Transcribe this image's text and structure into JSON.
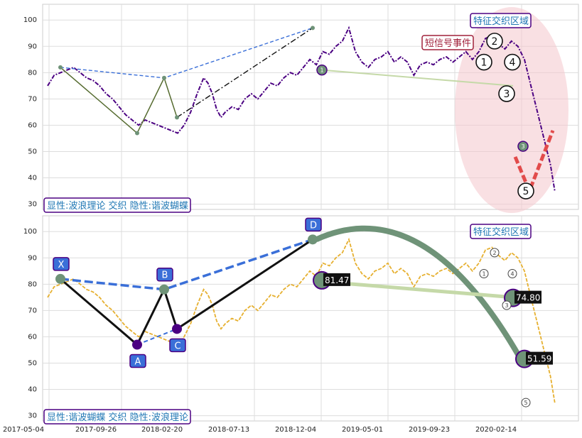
{
  "chart_data": [
    {
      "type": "line",
      "panel": "top",
      "ylim": [
        28,
        106
      ],
      "yticks": [
        30,
        40,
        50,
        60,
        70,
        80,
        90,
        100
      ],
      "grid": true,
      "series": [
        {
          "points": [
            [
              0,
              75
            ],
            [
              3,
              79
            ],
            [
              6,
              80
            ],
            [
              9,
              81
            ],
            [
              12,
              82
            ],
            [
              15,
              80
            ],
            [
              18,
              78
            ],
            [
              21,
              77
            ],
            [
              24,
              75
            ],
            [
              27,
              72
            ],
            [
              30,
              70
            ],
            [
              33,
              67
            ],
            [
              36,
              64
            ],
            [
              39,
              62
            ],
            [
              42,
              60
            ],
            [
              45,
              62
            ],
            [
              48,
              61
            ],
            [
              51,
              60
            ],
            [
              54,
              59
            ],
            [
              57,
              58
            ],
            [
              60,
              57
            ],
            [
              63,
              60
            ],
            [
              66,
              65
            ],
            [
              69,
              72
            ],
            [
              72,
              78
            ],
            [
              74,
              76
            ],
            [
              76,
              72
            ],
            [
              78,
              66
            ],
            [
              80,
              63
            ],
            [
              82,
              65
            ],
            [
              85,
              67
            ],
            [
              88,
              66
            ],
            [
              91,
              70
            ],
            [
              94,
              72
            ],
            [
              97,
              70
            ],
            [
              100,
              73
            ],
            [
              103,
              76
            ],
            [
              106,
              75
            ],
            [
              109,
              78
            ],
            [
              112,
              80
            ],
            [
              115,
              79
            ],
            [
              118,
              82
            ],
            [
              121,
              85
            ],
            [
              124,
              83
            ],
            [
              127,
              88
            ],
            [
              130,
              87
            ],
            [
              133,
              90
            ],
            [
              136,
              92
            ],
            [
              139,
              97
            ],
            [
              142,
              88
            ],
            [
              145,
              84
            ],
            [
              148,
              82
            ],
            [
              151,
              85
            ],
            [
              154,
              86
            ],
            [
              157,
              88
            ],
            [
              160,
              84
            ],
            [
              163,
              86
            ],
            [
              166,
              84
            ],
            [
              169,
              79
            ],
            [
              172,
              83
            ],
            [
              175,
              84
            ],
            [
              178,
              83
            ],
            [
              181,
              85
            ],
            [
              184,
              86
            ],
            [
              187,
              84
            ],
            [
              190,
              86
            ],
            [
              193,
              88
            ],
            [
              196,
              85
            ],
            [
              199,
              88
            ],
            [
              202,
              93
            ],
            [
              205,
              94
            ],
            [
              208,
              91
            ],
            [
              211,
              89
            ],
            [
              214,
              92
            ],
            [
              217,
              90
            ],
            [
              220,
              85
            ],
            [
              223,
              75
            ],
            [
              226,
              65
            ],
            [
              229,
              55
            ],
            [
              232,
              45
            ],
            [
              234,
              35
            ]
          ]
        }
      ],
      "annotations": [
        {
          "text": "短信号事件"
        },
        {
          "text": "特征交织区域"
        },
        {
          "text": "显性:波浪理论 交织 隐性:谐波蝴蝶"
        }
      ],
      "wave_labels": [
        "1",
        "2",
        "3",
        "4",
        "5"
      ],
      "small_wave_labels": [
        "1",
        "3"
      ]
    },
    {
      "type": "line",
      "panel": "bottom",
      "ylim": [
        28,
        106
      ],
      "yticks": [
        30,
        40,
        50,
        60,
        70,
        80,
        90,
        100
      ],
      "grid": true,
      "x_ticks": [
        "2017-05-04",
        "2017-09-26",
        "2018-02-20",
        "2018-07-13",
        "2018-12-04",
        "2019-05-01",
        "2019-09-23",
        "2020-02-14"
      ],
      "xabc_points": [
        {
          "label": "X",
          "y": 82
        },
        {
          "label": "A",
          "y": 57
        },
        {
          "label": "B",
          "y": 78
        },
        {
          "label": "C",
          "y": 63
        },
        {
          "label": "D",
          "y": 97
        }
      ],
      "price_markers": [
        "81.47",
        "74.80",
        "51.59"
      ],
      "annotations": [
        {
          "text": "特征交织区域"
        },
        {
          "text": "显性:谐波蝴蝶 交织 隐性:波浪理论"
        }
      ],
      "wave_labels": [
        "1",
        "2",
        "3",
        "4",
        "5"
      ]
    }
  ],
  "colors": {
    "price_top": "#4b0082",
    "price_bottom": "#e6b030",
    "harmonic": "#3a6fd8",
    "wave": "#2a2a2a",
    "ellipse": "#f4c6cc",
    "arrow": "#6f9378",
    "label_text": "#1f77b4",
    "label_border": "#4b0082"
  }
}
